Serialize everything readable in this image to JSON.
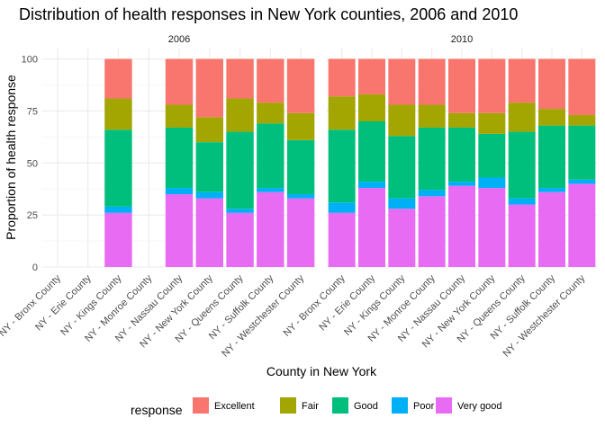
{
  "chart_data": {
    "type": "bar",
    "stacked": true,
    "title": "Distribution of health responses in New York counties, 2006 and 2010",
    "xlabel": "County in New York",
    "ylabel": "Proportion of health response",
    "ylim": [
      0,
      105
    ],
    "yticks": [
      0,
      25,
      50,
      75,
      100
    ],
    "grid": true,
    "legend": {
      "title": "response",
      "position": "bottom",
      "entries": [
        "Excellent",
        "Fair",
        "Good",
        "Poor",
        "Very good"
      ]
    },
    "colors": {
      "Excellent": "#F8766D",
      "Fair": "#A3A500",
      "Good": "#00BF7D",
      "Poor": "#00B0F6",
      "Very good": "#E76BF3"
    },
    "stack_order_bottom_to_top": [
      "Very good",
      "Poor",
      "Good",
      "Fair",
      "Excellent"
    ],
    "categories": [
      "NY - Bronx County",
      "NY - Erie County",
      "NY - Kings County",
      "NY - Monroe County",
      "NY - Nassau County",
      "NY - New York County",
      "NY - Queens County",
      "NY - Suffolk County",
      "NY - Westchester County"
    ],
    "panels": [
      {
        "label": "2006",
        "bars": [
          null,
          null,
          {
            "Very good": 26,
            "Poor": 3,
            "Good": 37,
            "Fair": 15,
            "Excellent": 19
          },
          null,
          {
            "Very good": 35,
            "Poor": 3,
            "Good": 29,
            "Fair": 11,
            "Excellent": 22
          },
          {
            "Very good": 33,
            "Poor": 3,
            "Good": 24,
            "Fair": 12,
            "Excellent": 28
          },
          {
            "Very good": 26,
            "Poor": 2,
            "Good": 37,
            "Fair": 16,
            "Excellent": 19
          },
          {
            "Very good": 36,
            "Poor": 2,
            "Good": 31,
            "Fair": 10,
            "Excellent": 21
          },
          {
            "Very good": 33,
            "Poor": 2,
            "Good": 26,
            "Fair": 13,
            "Excellent": 26
          }
        ]
      },
      {
        "label": "2010",
        "bars": [
          {
            "Very good": 26,
            "Poor": 5,
            "Good": 35,
            "Fair": 16,
            "Excellent": 18
          },
          {
            "Very good": 38,
            "Poor": 3,
            "Good": 29,
            "Fair": 13,
            "Excellent": 17
          },
          {
            "Very good": 28,
            "Poor": 5,
            "Good": 30,
            "Fair": 15,
            "Excellent": 22
          },
          {
            "Very good": 34,
            "Poor": 3,
            "Good": 30,
            "Fair": 11,
            "Excellent": 22
          },
          {
            "Very good": 39,
            "Poor": 2,
            "Good": 26,
            "Fair": 7,
            "Excellent": 26
          },
          {
            "Very good": 38,
            "Poor": 5,
            "Good": 21,
            "Fair": 10,
            "Excellent": 26
          },
          {
            "Very good": 30,
            "Poor": 3,
            "Good": 32,
            "Fair": 14,
            "Excellent": 21
          },
          {
            "Very good": 36,
            "Poor": 2,
            "Good": 30,
            "Fair": 8,
            "Excellent": 24
          },
          {
            "Very good": 40,
            "Poor": 2,
            "Good": 26,
            "Fair": 5,
            "Excellent": 27
          }
        ]
      }
    ]
  }
}
